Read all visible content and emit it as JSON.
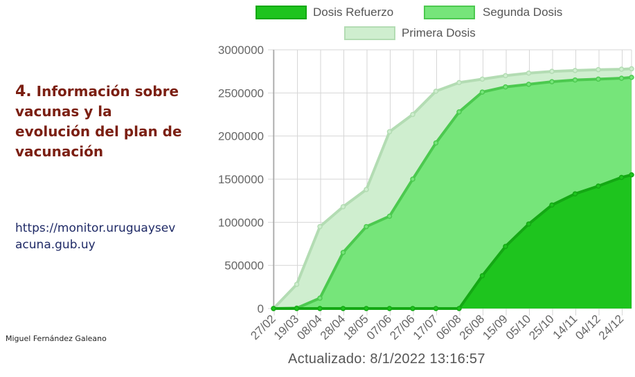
{
  "heading": {
    "number": "4.",
    "text": "Información sobre vacunas y la evolución del plan de vacunación"
  },
  "link": "https://monitor.uruguaysevacuna.gub.uy",
  "author": "Miguel Fernández Galeano",
  "chart_data": {
    "type": "area",
    "title": "",
    "xlabel": "",
    "ylabel": "",
    "ylim": [
      0,
      3000000
    ],
    "yticks": [
      0,
      500000,
      1000000,
      1500000,
      2000000,
      2500000,
      3000000
    ],
    "categories": [
      "27/02",
      "19/03",
      "08/04",
      "28/04",
      "18/05",
      "07/06",
      "27/06",
      "17/07",
      "06/08",
      "26/08",
      "15/09",
      "05/10",
      "25/10",
      "14/11",
      "04/12",
      "24/12"
    ],
    "grid": true,
    "legend_position": "top",
    "series": [
      {
        "name": "Dosis Refuerzo",
        "color": "#1ec41e",
        "values": [
          0,
          0,
          0,
          0,
          0,
          0,
          0,
          0,
          0,
          380000,
          720000,
          980000,
          1200000,
          1330000,
          1420000,
          1520000
        ],
        "end_value": 1550000
      },
      {
        "name": "Segunda Dosis",
        "color": "#76e57a",
        "values": [
          0,
          5000,
          120000,
          650000,
          950000,
          1070000,
          1500000,
          1920000,
          2280000,
          2510000,
          2570000,
          2600000,
          2630000,
          2650000,
          2660000,
          2670000
        ],
        "end_value": 2680000
      },
      {
        "name": "Primera Dosis",
        "color": "#cfeecf",
        "values": [
          0,
          280000,
          950000,
          1180000,
          1380000,
          2050000,
          2250000,
          2520000,
          2620000,
          2660000,
          2700000,
          2730000,
          2750000,
          2760000,
          2770000,
          2775000
        ],
        "end_value": 2780000
      }
    ]
  },
  "updated": "Actualizado: 8/1/2022 13:16:57"
}
